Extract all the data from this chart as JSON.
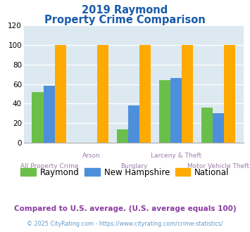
{
  "title_line1": "2019 Raymond",
  "title_line2": "Property Crime Comparison",
  "categories": [
    "All Property Crime",
    "Arson",
    "Burglary",
    "Larceny & Theft",
    "Motor Vehicle Theft"
  ],
  "raymond": [
    52,
    0,
    14,
    64,
    36
  ],
  "new_hampshire": [
    58,
    0,
    38,
    66,
    30
  ],
  "national": [
    100,
    100,
    100,
    100,
    100
  ],
  "color_raymond": "#6abf4b",
  "color_nh": "#4d8fdb",
  "color_national": "#ffaa00",
  "color_title": "#1a5ca8",
  "color_bg_plot": "#dce9f0",
  "color_xlabel": "#9b7faa",
  "color_footnote": "#8c3ca0",
  "color_copyright": "#6699cc",
  "ylim": [
    0,
    120
  ],
  "yticks": [
    0,
    20,
    40,
    60,
    80,
    100,
    120
  ],
  "title_fontsize": 10.5,
  "legend_fontsize": 8.5,
  "footnote_text": "Compared to U.S. average. (U.S. average equals 100)",
  "copyright_text": "© 2025 CityRating.com - https://www.cityrating.com/crime-statistics/"
}
